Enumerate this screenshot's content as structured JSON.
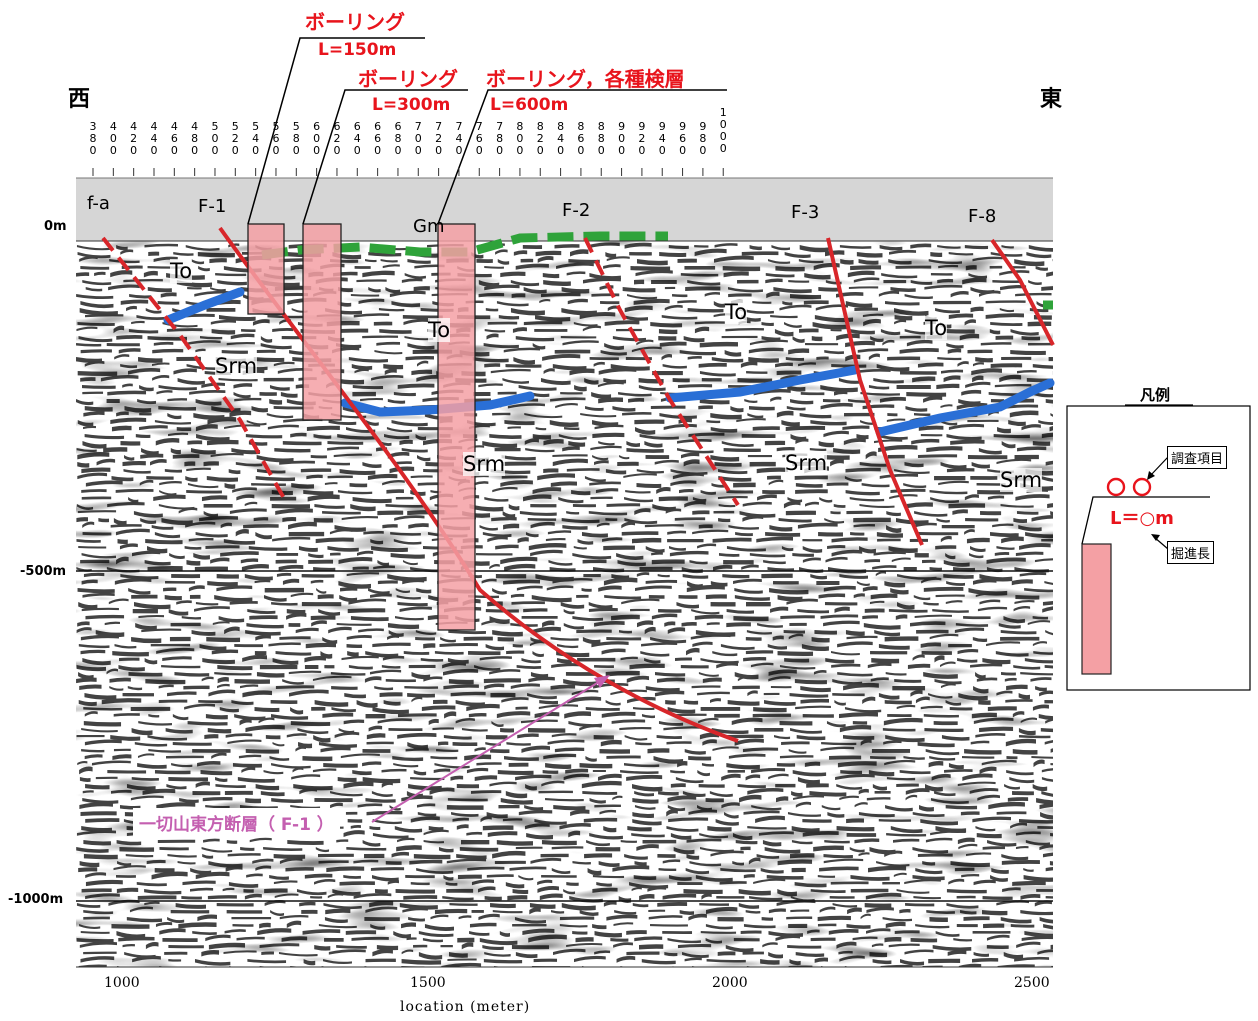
{
  "direction": {
    "west": "西",
    "east": "東"
  },
  "cdp_ticks": [
    "380",
    "400",
    "420",
    "440",
    "460",
    "480",
    "500",
    "520",
    "540",
    "560",
    "580",
    "600",
    "620",
    "640",
    "660",
    "680",
    "700",
    "720",
    "740",
    "760",
    "780",
    "800",
    "820",
    "840",
    "860",
    "880",
    "900",
    "920",
    "940",
    "960",
    "980",
    "1000"
  ],
  "depth_labels": [
    "0m",
    "-500m",
    "-1000m"
  ],
  "x_ticks": [
    "1000",
    "1500",
    "2000",
    "2500"
  ],
  "x_axis_label": "location (meter)",
  "boreholes": [
    {
      "title": "ボーリング",
      "length": "L=150m"
    },
    {
      "title": "ボーリング",
      "length": "L=300m"
    },
    {
      "title": "ボーリング，各種検層",
      "length": "L=600m"
    }
  ],
  "faults": [
    "f-a",
    "F-1",
    "F-2",
    "F-3",
    "F-8"
  ],
  "units": {
    "to": "To",
    "srm": "Srm",
    "gm": "Gm"
  },
  "fault_callout": "一切山東方断層（ F-1 ）",
  "legend": {
    "title": "凡例",
    "survey_items": "調査項目",
    "circles": "○○",
    "length": "L＝○m",
    "drilling_length": "掘進長"
  },
  "colors": {
    "fault_red": "#d8262a",
    "borehole_fill": "#f4a0a4",
    "blue_horizon": "#2a6fd6",
    "green_horizon": "#2fa33a",
    "callout_magenta": "#c45fb0",
    "label_red": "#e8141c"
  }
}
